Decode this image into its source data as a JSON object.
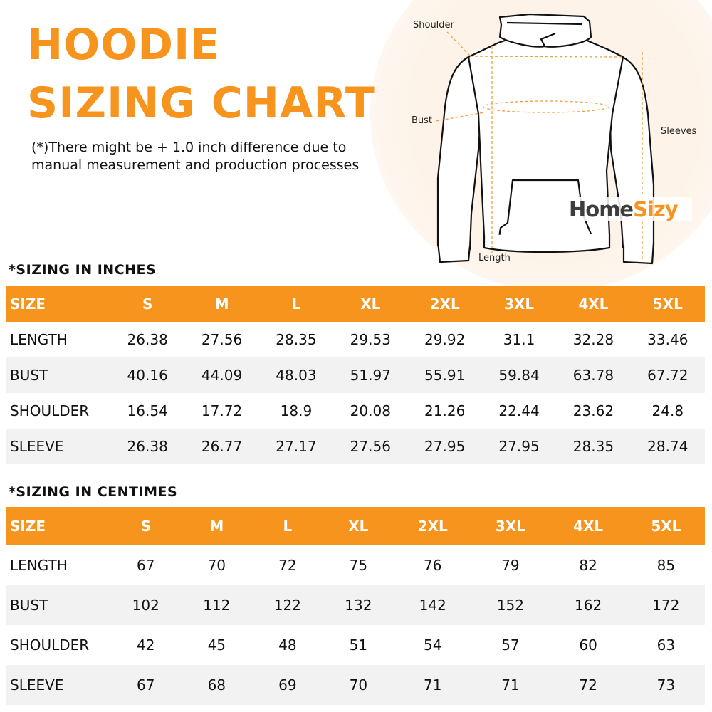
{
  "title_line1": "HOODIE",
  "title_line2": "SIZING CHART",
  "note_line1": "(*)There might be + 1.0 inch difference due to",
  "note_line2": "manual measurement and production processes",
  "diagram": {
    "shoulder": "Shoulder",
    "bust": "Bust",
    "sleeves": "Sleeves",
    "length": "Length"
  },
  "logo": {
    "part1": "Home",
    "part2": "Sizy"
  },
  "colors": {
    "accent": "#f7941d",
    "alt_row": "#f2f2f2"
  },
  "inches": {
    "heading": "*SIZING IN INCHES",
    "header": [
      "SIZE",
      "S",
      "M",
      "L",
      "XL",
      "2XL",
      "3XL",
      "4XL",
      "5XL"
    ],
    "rows": [
      [
        "LENGTH",
        "26.38",
        "27.56",
        "28.35",
        "29.53",
        "29.92",
        "31.1",
        "32.28",
        "33.46"
      ],
      [
        "BUST",
        "40.16",
        "44.09",
        "48.03",
        "51.97",
        "55.91",
        "59.84",
        "63.78",
        "67.72"
      ],
      [
        "SHOULDER",
        "16.54",
        "17.72",
        "18.9",
        "20.08",
        "21.26",
        "22.44",
        "23.62",
        "24.8"
      ],
      [
        "SLEEVE",
        "26.38",
        "26.77",
        "27.17",
        "27.56",
        "27.95",
        "27.95",
        "28.35",
        "28.74"
      ]
    ]
  },
  "centimes": {
    "heading": "*SIZING IN CENTIMES",
    "header": [
      "SIZE",
      "S",
      "M",
      "L",
      "XL",
      "2XL",
      "3XL",
      "4XL",
      "5XL"
    ],
    "rows": [
      [
        "LENGTH",
        "67",
        "70",
        "72",
        "75",
        "76",
        "79",
        "82",
        "85"
      ],
      [
        "BUST",
        "102",
        "112",
        "122",
        "132",
        "142",
        "152",
        "162",
        "172"
      ],
      [
        "SHOULDER",
        "42",
        "45",
        "48",
        "51",
        "54",
        "57",
        "60",
        "63"
      ],
      [
        "SLEEVE",
        "67",
        "68",
        "69",
        "70",
        "71",
        "71",
        "72",
        "73"
      ]
    ]
  }
}
